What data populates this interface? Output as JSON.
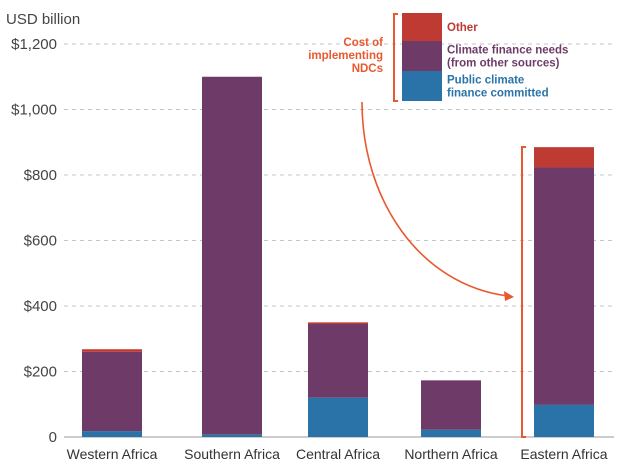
{
  "chart_data": {
    "type": "bar",
    "stacked": true,
    "unit_label": "USD billion",
    "categories": [
      "Western Africa",
      "Southern Africa",
      "Central Africa",
      "Northern Africa",
      "Eastern Africa"
    ],
    "series": [
      {
        "name": "Public climate finance committed",
        "color": "#2a73a8",
        "values": [
          18,
          8,
          120,
          22,
          98
        ]
      },
      {
        "name": "Climate finance needs (from other sources)",
        "color": "#6e3b68",
        "values": [
          242,
          1092,
          225,
          151,
          725
        ]
      },
      {
        "name": "Other",
        "color": "#be3a32",
        "values": [
          8,
          0,
          5,
          0,
          62
        ]
      }
    ],
    "ylim": [
      0,
      1200
    ],
    "yticks": [
      0,
      200,
      400,
      600,
      800,
      1000,
      1200
    ],
    "ytick_labels": [
      "0",
      "$200",
      "$400",
      "$600",
      "$800",
      "$1,000",
      "$1,200"
    ],
    "grid": "horizontal-dashed",
    "legend_position": "top-right",
    "callout": {
      "lines": [
        "Cost of",
        "implementing",
        "NDCs"
      ],
      "color": "#e8592f",
      "target_category": "Eastern Africa"
    },
    "legend_labels": {
      "other": [
        "Other"
      ],
      "needs": [
        "Climate finance needs",
        "(from other sources)"
      ],
      "public": [
        "Public climate",
        "finance committed"
      ]
    }
  }
}
